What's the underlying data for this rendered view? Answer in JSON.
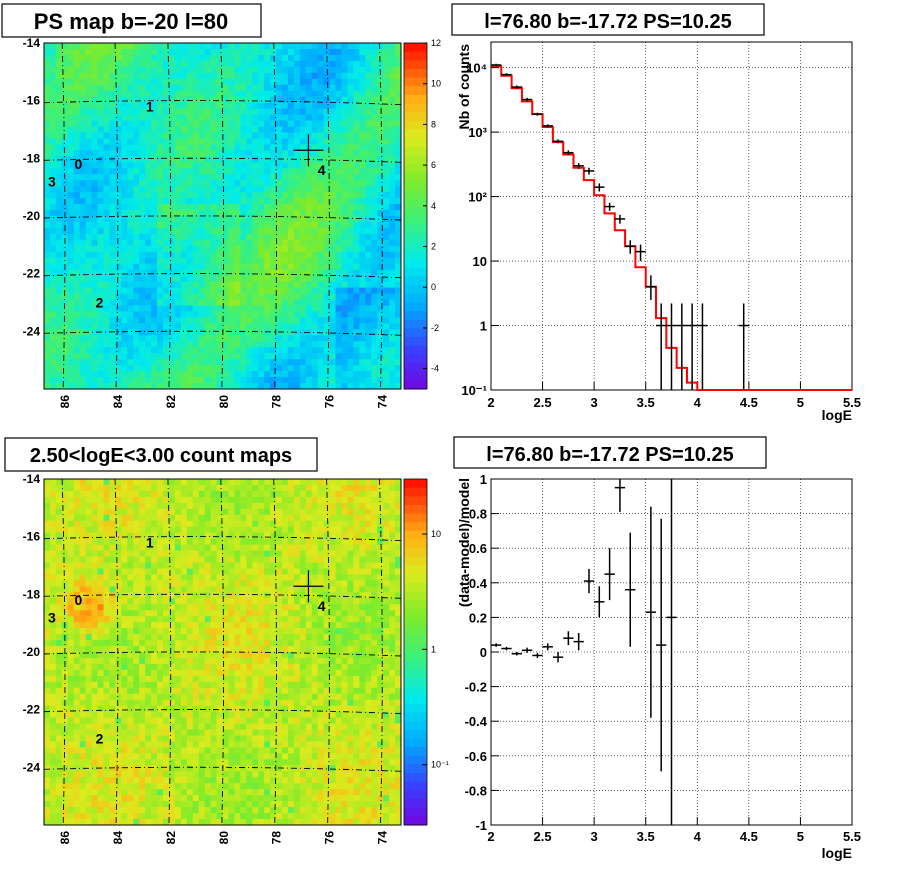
{
  "panels": {
    "map_top": {
      "title": "PS map b=-20 l=80",
      "x_ticks": [
        "86",
        "84",
        "82",
        "80",
        "78",
        "76",
        "74"
      ],
      "y_ticks": [
        "-14",
        "-16",
        "-18",
        "-20",
        "-22",
        "-24"
      ],
      "colorbar_ticks": [
        "12",
        "10",
        "8",
        "6",
        "4",
        "2",
        "0",
        "-2",
        "-4"
      ],
      "source_labels": [
        "0",
        "1",
        "2",
        "3",
        "4"
      ]
    },
    "map_bottom": {
      "title": "2.50<logE<3.00 count maps",
      "x_ticks": [
        "86",
        "84",
        "82",
        "80",
        "78",
        "76",
        "74"
      ],
      "y_ticks": [
        "-14",
        "-16",
        "-18",
        "-20",
        "-22",
        "-24"
      ],
      "colorbar_ticks": [
        "10",
        "1",
        "10⁻¹"
      ],
      "source_labels": [
        "0",
        "1",
        "2",
        "3",
        "4"
      ]
    },
    "spectrum": {
      "title": "l=76.80 b=-17.72 PS=10.25",
      "xlabel": "logE",
      "ylabel": "Nb of counts",
      "x_ticks": [
        "2",
        "2.5",
        "3",
        "3.5",
        "4",
        "4.5",
        "5",
        "5.5"
      ],
      "y_ticks": [
        "10⁴",
        "10³",
        "10²",
        "10",
        "1",
        "10⁻¹"
      ]
    },
    "residual": {
      "title": "l=76.80 b=-17.72 PS=10.25",
      "xlabel": "logE",
      "ylabel": "(data-model)/model",
      "x_ticks": [
        "2",
        "2.5",
        "3",
        "3.5",
        "4",
        "4.5",
        "5",
        "5.5"
      ],
      "y_ticks": [
        "1",
        "0.8",
        "0.6",
        "0.4",
        "0.2",
        "0",
        "-0.2",
        "-0.4",
        "-0.6",
        "-0.8",
        "-1"
      ]
    }
  },
  "colors": {
    "model_line": "#ff0000",
    "data_marker": "#000000",
    "grid": "#000000"
  },
  "chart_data": [
    {
      "type": "heatmap",
      "title": "PS map b=-20 l=80",
      "xlabel": "",
      "ylabel": "",
      "xlim": [
        86.8,
        73.3
      ],
      "ylim": [
        -26,
        -14
      ],
      "zlim": [
        -5,
        12
      ],
      "colormap": "rainbow",
      "sources": [
        {
          "label": "0",
          "l": 85.5,
          "b": -18.2
        },
        {
          "label": "1",
          "l": 82.8,
          "b": -16.2
        },
        {
          "label": "2",
          "l": 84.7,
          "b": -23.0
        },
        {
          "label": "3",
          "l": 86.5,
          "b": -18.8
        },
        {
          "label": "4",
          "l": 76.3,
          "b": -18.4
        }
      ],
      "marker": {
        "l": 76.8,
        "b": -17.72
      }
    },
    {
      "type": "heatmap",
      "title": "2.50<logE<3.00 count maps",
      "xlabel": "",
      "ylabel": "",
      "xlim": [
        86.8,
        73.3
      ],
      "ylim": [
        -26,
        -14
      ],
      "zscale": "log",
      "zlim": [
        0.03,
        30
      ],
      "colormap": "rainbow",
      "sources": [
        {
          "label": "0",
          "l": 85.5,
          "b": -18.2
        },
        {
          "label": "1",
          "l": 82.8,
          "b": -16.2
        },
        {
          "label": "2",
          "l": 84.7,
          "b": -23.0
        },
        {
          "label": "3",
          "l": 86.5,
          "b": -18.8
        },
        {
          "label": "4",
          "l": 76.3,
          "b": -18.4
        }
      ],
      "marker": {
        "l": 76.8,
        "b": -17.72
      }
    },
    {
      "type": "line",
      "title": "l=76.80 b=-17.72 PS=10.25",
      "xlabel": "logE",
      "ylabel": "Nb of counts",
      "xlim": [
        2,
        5.5
      ],
      "ylim": [
        0.1,
        25000
      ],
      "yscale": "log",
      "grid": true,
      "model_histogram": {
        "bin_edges": [
          2.0,
          2.1,
          2.2,
          2.3,
          2.4,
          2.5,
          2.6,
          2.7,
          2.8,
          2.9,
          3.0,
          3.1,
          3.2,
          3.3,
          3.4,
          3.5,
          3.6,
          3.7,
          3.8,
          3.9,
          4.0,
          4.1,
          5.5
        ],
        "values": [
          10500,
          7500,
          4800,
          3000,
          1900,
          1200,
          700,
          450,
          280,
          180,
          105,
          55,
          30,
          17,
          8,
          4,
          1.3,
          0.45,
          0.22,
          0.13,
          0.1,
          0.1
        ]
      },
      "data_points": [
        {
          "x": 2.05,
          "y": 11000,
          "yerr_lo": 10500,
          "yerr_hi": 11500
        },
        {
          "x": 2.15,
          "y": 7800,
          "yerr_lo": 7400,
          "yerr_hi": 8200
        },
        {
          "x": 2.25,
          "y": 5000,
          "yerr_lo": 4700,
          "yerr_hi": 5300
        },
        {
          "x": 2.35,
          "y": 3200,
          "yerr_lo": 3000,
          "yerr_hi": 3400
        },
        {
          "x": 2.45,
          "y": 1900,
          "yerr_lo": 1800,
          "yerr_hi": 2000
        },
        {
          "x": 2.55,
          "y": 1250,
          "yerr_lo": 1180,
          "yerr_hi": 1320
        },
        {
          "x": 2.65,
          "y": 720,
          "yerr_lo": 670,
          "yerr_hi": 770
        },
        {
          "x": 2.75,
          "y": 480,
          "yerr_lo": 440,
          "yerr_hi": 520
        },
        {
          "x": 2.85,
          "y": 300,
          "yerr_lo": 270,
          "yerr_hi": 330
        },
        {
          "x": 2.95,
          "y": 250,
          "yerr_lo": 220,
          "yerr_hi": 280
        },
        {
          "x": 3.05,
          "y": 140,
          "yerr_lo": 120,
          "yerr_hi": 160
        },
        {
          "x": 3.15,
          "y": 70,
          "yerr_lo": 60,
          "yerr_hi": 80
        },
        {
          "x": 3.25,
          "y": 45,
          "yerr_lo": 38,
          "yerr_hi": 52
        },
        {
          "x": 3.35,
          "y": 17,
          "yerr_lo": 13,
          "yerr_hi": 21
        },
        {
          "x": 3.45,
          "y": 14,
          "yerr_lo": 10,
          "yerr_hi": 18
        },
        {
          "x": 3.55,
          "y": 4,
          "yerr_lo": 2.5,
          "yerr_hi": 6
        },
        {
          "x": 3.65,
          "y": 1,
          "yerr_lo": 0.1,
          "yerr_hi": 2.2
        },
        {
          "x": 3.75,
          "y": 1,
          "yerr_lo": 0.1,
          "yerr_hi": 2.2
        },
        {
          "x": 3.85,
          "y": 1,
          "yerr_lo": 0.1,
          "yerr_hi": 2.2
        },
        {
          "x": 3.95,
          "y": 1,
          "yerr_lo": 0.1,
          "yerr_hi": 2.2
        },
        {
          "x": 4.05,
          "y": 1,
          "yerr_lo": 0.1,
          "yerr_hi": 2.2
        },
        {
          "x": 4.45,
          "y": 1,
          "yerr_lo": 0.1,
          "yerr_hi": 2.2
        }
      ]
    },
    {
      "type": "scatter",
      "title": "l=76.80 b=-17.72 PS=10.25",
      "xlabel": "logE",
      "ylabel": "(data-model)/model",
      "xlim": [
        2,
        5.5
      ],
      "ylim": [
        -1,
        1
      ],
      "grid": true,
      "points": [
        {
          "x": 2.05,
          "y": 0.04,
          "yerr": 0.01
        },
        {
          "x": 2.15,
          "y": 0.02,
          "yerr": 0.01
        },
        {
          "x": 2.25,
          "y": -0.01,
          "yerr": 0.01
        },
        {
          "x": 2.35,
          "y": 0.01,
          "yerr": 0.015
        },
        {
          "x": 2.45,
          "y": -0.02,
          "yerr": 0.015
        },
        {
          "x": 2.55,
          "y": 0.03,
          "yerr": 0.02
        },
        {
          "x": 2.65,
          "y": -0.03,
          "yerr": 0.03
        },
        {
          "x": 2.75,
          "y": 0.08,
          "yerr": 0.04
        },
        {
          "x": 2.85,
          "y": 0.06,
          "yerr": 0.05
        },
        {
          "x": 2.95,
          "y": 0.41,
          "yerr": 0.07
        },
        {
          "x": 3.05,
          "y": 0.29,
          "yerr": 0.09
        },
        {
          "x": 3.15,
          "y": 0.45,
          "yerr": 0.15
        },
        {
          "x": 3.25,
          "y": 0.95,
          "yerr": 0.14
        },
        {
          "x": 3.35,
          "y": 0.36,
          "yerr": 0.33
        },
        {
          "x": 3.55,
          "y": 0.23,
          "yerr": 0.61
        },
        {
          "x": 3.65,
          "y": 0.04,
          "yerr": 0.73
        },
        {
          "x": 3.75,
          "y": 0.2,
          "yerr": 1.2
        }
      ]
    }
  ]
}
